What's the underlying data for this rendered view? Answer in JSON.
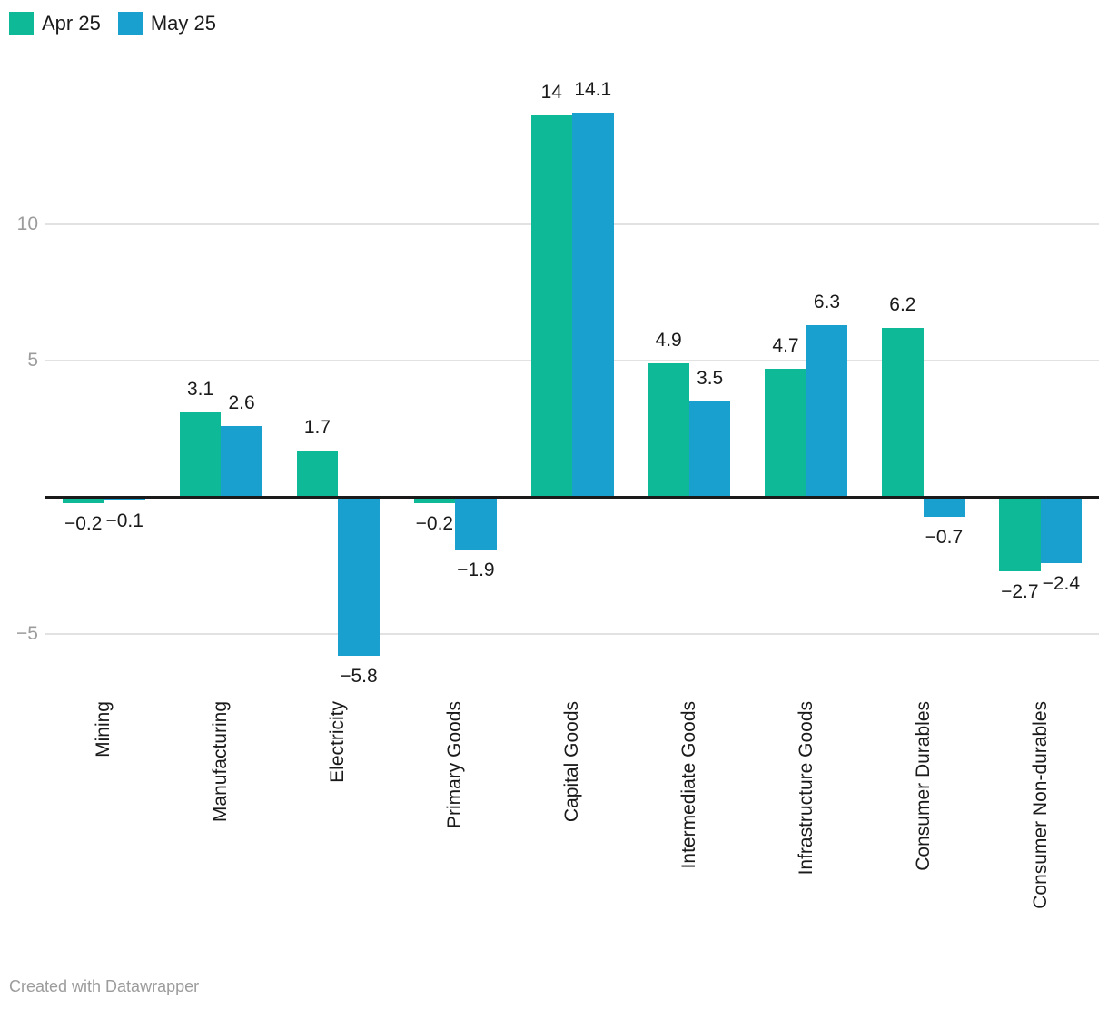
{
  "legend": {
    "items": [
      {
        "label": "Apr 25",
        "color": "#0db996"
      },
      {
        "label": "May 25",
        "color": "#1aa0ce"
      }
    ]
  },
  "chart_data": {
    "type": "bar",
    "title": "",
    "categories": [
      "Mining",
      "Manufacturing",
      "Electricity",
      "Primary Goods",
      "Capital Goods",
      "Intermediate Goods",
      "Infrastructure Goods",
      "Consumer Durables",
      "Consumer Non-durables"
    ],
    "series": [
      {
        "name": "Apr 25",
        "color": "#0db996",
        "values": [
          -0.2,
          3.1,
          1.7,
          -0.2,
          14,
          4.9,
          4.7,
          6.2,
          -2.7
        ]
      },
      {
        "name": "May 25",
        "color": "#1aa0ce",
        "values": [
          -0.1,
          2.6,
          -5.8,
          -1.9,
          14.1,
          3.5,
          6.3,
          -0.7,
          -2.4
        ]
      }
    ],
    "y_axis": {
      "ticks": [
        10,
        5,
        -5
      ],
      "zero_baseline": 0,
      "range": [
        -7.5,
        15.5
      ]
    },
    "grid": true,
    "legend_position": "top-left",
    "value_labels": true
  },
  "footer": {
    "credit": "Created with Datawrapper"
  }
}
